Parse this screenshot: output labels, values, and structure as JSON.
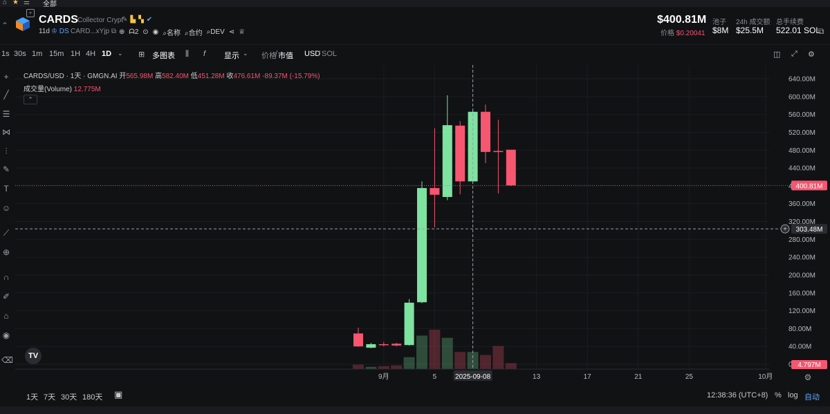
{
  "top_strip": {
    "tab_label": "全部"
  },
  "token": {
    "symbol": "CARDS",
    "name": "Collector Crypt",
    "age": "11d",
    "ds": "DS",
    "address": "CARD...xYjp",
    "holders": "2",
    "links": [
      "名称",
      "合约",
      "DEV"
    ]
  },
  "stats": {
    "market_cap": "$400.81M",
    "price_label": "价格",
    "price": "$0.20041",
    "pool_label": "池子",
    "pool": "$8M",
    "volume_label": "24h 成交额",
    "volume": "$25.5M",
    "fees_label": "总手续费",
    "fees": "522.01 SOL"
  },
  "toolbar": {
    "timeframes": [
      "1s",
      "30s",
      "1m",
      "15m",
      "1H",
      "4H",
      "1D"
    ],
    "active_timeframe": "1D",
    "multi_chart": "多图表",
    "display": "显示",
    "price_label": "价格",
    "mcap_label": "市值",
    "usd": "USD",
    "sol": "SOL"
  },
  "legend": {
    "pair": "CARDS/USD · 1天 · GMGN.AI",
    "open_label": "开",
    "open": "565.98M",
    "high_label": "高",
    "high": "582.40M",
    "low_label": "低",
    "low": "451.28M",
    "close_label": "收",
    "close": "476.61M",
    "change": "-89.37M (-15.79%)",
    "volume_label": "成交量(Volume)",
    "volume_value": "12.775M"
  },
  "chart_data": {
    "type": "candlestick",
    "y_axis": {
      "min": 0,
      "max": 640,
      "unit": "M",
      "ticks": [
        "640.00M",
        "600.00M",
        "560.00M",
        "520.00M",
        "480.00M",
        "440.00M",
        "400.00M",
        "360.00M",
        "320.00M",
        "280.00M",
        "240.00M",
        "200.00M",
        "160.00M",
        "120.00M",
        "80.00M",
        "40.00M",
        "0.0000"
      ]
    },
    "x_axis": {
      "ticks": [
        "9月",
        "5",
        "2025-09-08",
        "13",
        "17",
        "21",
        "25",
        "10月"
      ]
    },
    "candles": [
      {
        "date": "2025-08-30",
        "o": 69,
        "h": 82,
        "l": 39,
        "c": 40
      },
      {
        "date": "2025-08-31",
        "o": 37,
        "h": 48,
        "l": 36,
        "c": 45
      },
      {
        "date": "2025-09-01",
        "o": 45,
        "h": 50,
        "l": 40,
        "c": 43
      },
      {
        "date": "2025-09-02",
        "o": 46,
        "h": 48,
        "l": 40,
        "c": 42
      },
      {
        "date": "2025-09-03",
        "o": 43,
        "h": 146,
        "l": 42,
        "c": 138
      },
      {
        "date": "2025-09-04",
        "o": 139,
        "h": 410,
        "l": 137,
        "c": 395
      },
      {
        "date": "2025-09-05",
        "o": 395,
        "h": 529,
        "l": 307,
        "c": 380
      },
      {
        "date": "2025-09-06",
        "o": 375,
        "h": 603,
        "l": 368,
        "c": 536
      },
      {
        "date": "2025-09-07",
        "o": 535,
        "h": 545,
        "l": 381,
        "c": 410
      },
      {
        "date": "2025-09-08",
        "o": 410,
        "h": 572,
        "l": 405,
        "c": 566
      },
      {
        "date": "2025-09-09",
        "o": 566,
        "h": 582,
        "l": 451,
        "c": 476
      },
      {
        "date": "2025-09-10",
        "o": 478,
        "h": 548,
        "l": 383,
        "c": 476
      },
      {
        "date": "2025-09-11",
        "o": 481,
        "h": 481,
        "l": 400,
        "c": 401
      }
    ],
    "volume_values": [
      0.6,
      0.3,
      0.4,
      0.5,
      1.6,
      4.5,
      5.3,
      4.2,
      2.3,
      2.3,
      1.9,
      3.1,
      0.8
    ],
    "last_price_label": "400.81M",
    "crosshair_price_label": "303.48M",
    "crosshair_date_label": "2025-09-08",
    "volume_label_right": "4.797M"
  },
  "bottom": {
    "ranges": [
      "1天",
      "7天",
      "30天",
      "180天"
    ],
    "time": "12:38:36 (UTC+8)",
    "percent": "%",
    "log": "log",
    "auto": "自动"
  },
  "colors": {
    "up": "#7ee2a0",
    "down": "#f6566f",
    "bg": "#111214"
  }
}
